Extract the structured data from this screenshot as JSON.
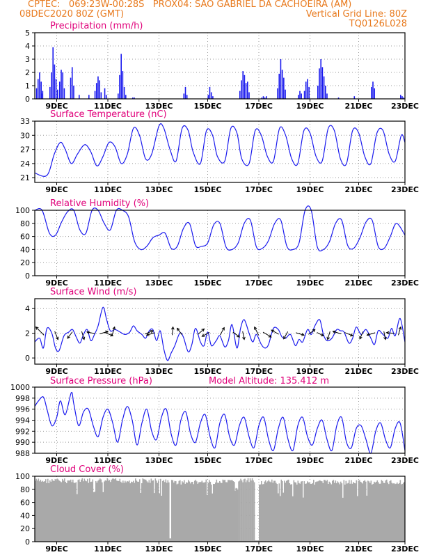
{
  "header": {
    "line1_left": "CPTEC:   069:23W-00:28S   PROX04: SAO GABRIEL DA CACHOEIRA (AM)",
    "line2_left": "08DEC2020 80Z (GMT)",
    "line2_right": "Vertical Grid Line: 80Z",
    "line3_right": "TQ0126L028"
  },
  "colors": {
    "header": "#e87a1e",
    "title": "#e0007a",
    "series": "#1a1aee",
    "cloud": "#a9a9a9"
  },
  "x_tick_labels": [
    "9DEC",
    "11DEC",
    "13DEC",
    "15DEC",
    "17DEC",
    "19DEC",
    "21DEC",
    "23DEC"
  ],
  "chart_data": [
    {
      "type": "bar",
      "title": "Precipitation (mm/h)",
      "ylim": [
        0,
        5
      ],
      "yticks": [
        0,
        1,
        2,
        3,
        4,
        5
      ],
      "x_range_days": [
        0,
        15.2
      ],
      "bursts": [
        {
          "day": 0.05,
          "values": [
            0.8,
            1.5,
            2.0,
            1.3,
            0.6
          ]
        },
        {
          "day": 0.25,
          "values": [
            0.4
          ]
        },
        {
          "day": 0.6,
          "values": [
            0.9,
            2.0,
            3.9,
            2.6,
            1.5,
            0.7
          ]
        },
        {
          "day": 1.0,
          "values": [
            1.3,
            2.2,
            2.0,
            0.8
          ]
        },
        {
          "day": 1.45,
          "values": [
            1.6,
            2.4,
            1.0
          ]
        },
        {
          "day": 1.8,
          "values": [
            0.3
          ]
        },
        {
          "day": 2.2,
          "values": [
            0.3
          ]
        },
        {
          "day": 2.45,
          "values": [
            0.6,
            1.2,
            1.7,
            1.4,
            0.5
          ]
        },
        {
          "day": 2.85,
          "values": [
            0.8,
            0.3
          ]
        },
        {
          "day": 3.4,
          "values": [
            0.4,
            1.8,
            3.4,
            2.1,
            0.9,
            0.3
          ]
        },
        {
          "day": 4.0,
          "values": [
            0.1,
            0.1
          ]
        },
        {
          "day": 6.1,
          "values": [
            0.4,
            0.9,
            0.3
          ]
        },
        {
          "day": 7.1,
          "values": [
            0.3,
            0.9,
            0.5,
            0.2
          ]
        },
        {
          "day": 8.4,
          "values": [
            0.6,
            1.4,
            2.1,
            1.8,
            1.2,
            1.3,
            0.5
          ]
        },
        {
          "day": 9.3,
          "values": [
            0.1,
            0.2,
            0.1,
            0.2
          ]
        },
        {
          "day": 9.95,
          "values": [
            0.8,
            1.9,
            3.0,
            2.2,
            1.6,
            0.7
          ]
        },
        {
          "day": 10.8,
          "values": [
            0.3,
            0.6,
            0.4
          ]
        },
        {
          "day": 11.05,
          "values": [
            0.6,
            1.3,
            1.5,
            0.9
          ]
        },
        {
          "day": 11.6,
          "values": [
            1.0,
            2.3,
            3.0,
            2.4,
            1.7,
            1.0,
            0.4
          ]
        },
        {
          "day": 12.45,
          "values": [
            0.1
          ]
        },
        {
          "day": 13.1,
          "values": [
            0.2
          ]
        },
        {
          "day": 13.8,
          "values": [
            0.9,
            1.3,
            0.8
          ]
        },
        {
          "day": 15.0,
          "values": [
            0.3,
            0.2,
            0.1
          ]
        }
      ]
    },
    {
      "type": "line",
      "title": "Surface Temperature (nC)",
      "ylim": [
        20,
        33
      ],
      "yticks": [
        21,
        24,
        27,
        30,
        33
      ],
      "x": [
        0.0,
        0.5,
        0.8,
        1.05,
        1.25,
        1.5,
        1.75,
        2.05,
        2.3,
        2.55,
        2.8,
        3.05,
        3.3,
        3.55,
        3.8,
        4.05,
        4.3,
        4.55,
        4.8,
        5.1,
        5.3,
        5.55,
        5.8,
        6.05,
        6.3,
        6.5,
        6.8,
        7.05,
        7.3,
        7.5,
        7.8,
        8.05,
        8.3,
        8.5,
        8.8,
        9.05,
        9.3,
        9.55,
        9.8,
        10.05,
        10.3,
        10.55,
        10.8,
        11.05,
        11.3,
        11.55,
        11.8,
        12.05,
        12.3,
        12.55,
        12.8,
        13.05,
        13.3,
        13.55,
        13.8,
        14.05,
        14.3,
        14.55,
        14.8,
        15.05,
        15.2
      ],
      "values": [
        22.0,
        21.5,
        26.0,
        28.5,
        27.0,
        24.0,
        26.0,
        28.0,
        26.5,
        23.5,
        25.5,
        28.5,
        27.5,
        24.0,
        26.0,
        31.5,
        30.0,
        25.0,
        26.0,
        32.0,
        31.5,
        27.0,
        24.5,
        31.5,
        31.0,
        26.5,
        24.0,
        31.0,
        30.0,
        25.5,
        24.5,
        31.5,
        30.5,
        25.0,
        24.0,
        31.0,
        30.0,
        25.5,
        24.5,
        31.5,
        30.0,
        25.0,
        24.0,
        31.0,
        30.5,
        25.5,
        24.5,
        31.5,
        31.0,
        25.0,
        24.0,
        31.0,
        30.5,
        25.5,
        24.0,
        30.5,
        31.0,
        26.0,
        24.5,
        30.0,
        28.5
      ]
    },
    {
      "type": "line",
      "title": "Relative Humidity (%)",
      "ylim": [
        0,
        100
      ],
      "yticks": [
        0,
        20,
        40,
        60,
        80,
        100
      ],
      "x": [
        0.0,
        0.3,
        0.6,
        0.85,
        1.1,
        1.35,
        1.6,
        1.85,
        2.1,
        2.35,
        2.6,
        2.85,
        3.1,
        3.35,
        3.6,
        3.85,
        4.1,
        4.35,
        4.6,
        4.85,
        5.1,
        5.35,
        5.6,
        5.85,
        6.1,
        6.35,
        6.6,
        6.85,
        7.1,
        7.35,
        7.6,
        7.85,
        8.1,
        8.35,
        8.6,
        8.85,
        9.1,
        9.35,
        9.6,
        9.85,
        10.1,
        10.35,
        10.6,
        10.85,
        11.1,
        11.35,
        11.6,
        11.85,
        12.1,
        12.35,
        12.6,
        12.85,
        13.1,
        13.35,
        13.6,
        13.85,
        14.1,
        14.35,
        14.6,
        14.85,
        15.2
      ],
      "values": [
        100,
        100,
        65,
        62,
        82,
        98,
        100,
        70,
        65,
        100,
        100,
        80,
        70,
        100,
        100,
        90,
        52,
        40,
        45,
        58,
        62,
        65,
        42,
        45,
        72,
        80,
        46,
        45,
        50,
        78,
        80,
        44,
        40,
        50,
        80,
        85,
        44,
        42,
        54,
        80,
        85,
        45,
        40,
        50,
        100,
        100,
        44,
        40,
        52,
        80,
        85,
        46,
        42,
        58,
        82,
        85,
        45,
        42,
        60,
        80,
        62
      ]
    },
    {
      "type": "line",
      "title": "Surface Wind (m/s)",
      "ylim": [
        -0.5,
        4.8
      ],
      "yticks": [
        0,
        2,
        4
      ],
      "x": [
        0.0,
        0.2,
        0.35,
        0.5,
        0.7,
        0.85,
        1.0,
        1.2,
        1.4,
        1.55,
        1.7,
        1.85,
        2.0,
        2.15,
        2.3,
        2.45,
        2.6,
        2.8,
        2.95,
        3.1,
        3.3,
        3.5,
        3.7,
        3.9,
        4.05,
        4.2,
        4.4,
        4.55,
        4.7,
        4.85,
        5.0,
        5.15,
        5.3,
        5.45,
        5.6,
        5.75,
        5.95,
        6.1,
        6.3,
        6.45,
        6.6,
        6.8,
        6.95,
        7.1,
        7.25,
        7.45,
        7.6,
        7.8,
        7.95,
        8.1,
        8.3,
        8.45,
        8.6,
        8.8,
        8.95,
        9.1,
        9.3,
        9.45,
        9.6,
        9.8,
        10.0,
        10.15,
        10.3,
        10.5,
        10.7,
        10.85,
        11.0,
        11.2,
        11.35,
        11.5,
        11.7,
        11.85,
        12.0,
        12.2,
        12.4,
        12.55,
        12.7,
        12.9,
        13.05,
        13.2,
        13.4,
        13.6,
        13.8,
        13.95,
        14.1,
        14.3,
        14.5,
        14.65,
        14.8,
        15.0,
        15.2
      ],
      "values": [
        1.3,
        1.6,
        0.8,
        2.4,
        2.0,
        0.8,
        0.6,
        1.8,
        2.1,
        2.3,
        1.7,
        1.2,
        1.9,
        2.3,
        1.4,
        1.9,
        2.6,
        4.1,
        3.1,
        2.2,
        2.3,
        2.1,
        1.9,
        2.1,
        2.6,
        2.2,
        1.9,
        1.6,
        2.2,
        2.3,
        1.4,
        2.2,
        0.7,
        -0.2,
        0.4,
        1.0,
        2.0,
        1.7,
        0.5,
        1.1,
        2.4,
        1.3,
        1.0,
        2.1,
        1.0,
        1.4,
        1.8,
        0.9,
        1.4,
        2.7,
        0.8,
        2.4,
        3.1,
        2.0,
        1.3,
        1.9,
        1.1,
        0.8,
        1.1,
        2.4,
        2.3,
        1.7,
        1.6,
        1.9,
        1.0,
        1.5,
        1.3,
        2.3,
        1.9,
        2.6,
        3.1,
        1.9,
        1.4,
        1.6,
        2.3,
        2.2,
        2.1,
        1.2,
        1.6,
        2.5,
        1.9,
        2.3,
        1.6,
        1.1,
        2.2,
        1.9,
        1.6,
        2.4,
        1.8,
        3.2,
        1.3
      ],
      "arrows": [
        {
          "day": 0.3,
          "u": -1.0,
          "v": 1.0
        },
        {
          "day": 0.85,
          "u": 0.4,
          "v": -1.0
        },
        {
          "day": 1.5,
          "u": -0.6,
          "v": -0.8
        },
        {
          "day": 1.95,
          "u": 0.3,
          "v": -1.0
        },
        {
          "day": 2.4,
          "u": -1.0,
          "v": 0.2
        },
        {
          "day": 2.75,
          "u": 1.0,
          "v": 0.3
        },
        {
          "day": 2.95,
          "u": 1.0,
          "v": -0.4
        },
        {
          "day": 3.2,
          "u": 0.3,
          "v": 1.0
        },
        {
          "day": 4.6,
          "u": 1.0,
          "v": 0.4
        },
        {
          "day": 4.85,
          "u": -1.0,
          "v": -0.3
        },
        {
          "day": 5.65,
          "u": 0.1,
          "v": 1.0
        },
        {
          "day": 6.0,
          "u": -0.6,
          "v": 0.8
        },
        {
          "day": 6.75,
          "u": 0.8,
          "v": 0.7
        },
        {
          "day": 7.1,
          "u": -0.9,
          "v": -0.5
        },
        {
          "day": 7.65,
          "u": 0.5,
          "v": 0.9
        },
        {
          "day": 8.2,
          "u": 0.8,
          "v": -0.6
        },
        {
          "day": 8.55,
          "u": 0.2,
          "v": -1.0
        },
        {
          "day": 9.15,
          "u": -0.5,
          "v": 1.0
        },
        {
          "day": 9.45,
          "u": 1.0,
          "v": -0.6
        },
        {
          "day": 9.95,
          "u": -0.9,
          "v": 0.5
        },
        {
          "day": 10.35,
          "u": -0.5,
          "v": -0.9
        },
        {
          "day": 10.8,
          "u": 1.0,
          "v": -0.3
        },
        {
          "day": 11.3,
          "u": 0.8,
          "v": 0.6
        },
        {
          "day": 11.65,
          "u": 0.8,
          "v": -0.4
        },
        {
          "day": 12.1,
          "u": -0.3,
          "v": -1.0
        },
        {
          "day": 12.5,
          "u": -1.0,
          "v": 0.3
        },
        {
          "day": 12.8,
          "u": 1.0,
          "v": -0.4
        },
        {
          "day": 13.45,
          "u": -0.4,
          "v": -0.9
        },
        {
          "day": 13.9,
          "u": -1.0,
          "v": -0.3
        },
        {
          "day": 14.35,
          "u": 0.2,
          "v": -1.0
        },
        {
          "day": 14.7,
          "u": -1.0,
          "v": 0.1
        },
        {
          "day": 14.95,
          "u": 0.3,
          "v": 1.0
        }
      ]
    },
    {
      "type": "line",
      "title": "Surface Pressure (hPa)",
      "annotation": "Model Altitude: 135.412 m",
      "ylim": [
        988,
        1000
      ],
      "yticks": [
        988,
        990,
        992,
        994,
        996,
        998,
        1000
      ],
      "x": [
        0.0,
        0.15,
        0.35,
        0.5,
        0.7,
        0.9,
        1.05,
        1.25,
        1.5,
        1.6,
        1.8,
        2.0,
        2.2,
        2.4,
        2.6,
        2.8,
        3.0,
        3.2,
        3.4,
        3.6,
        3.8,
        4.0,
        4.2,
        4.4,
        4.6,
        4.8,
        5.0,
        5.2,
        5.4,
        5.6,
        5.8,
        6.0,
        6.2,
        6.4,
        6.6,
        6.8,
        7.0,
        7.2,
        7.4,
        7.6,
        7.8,
        8.0,
        8.2,
        8.4,
        8.6,
        8.8,
        9.0,
        9.2,
        9.4,
        9.6,
        9.8,
        10.0,
        10.2,
        10.4,
        10.6,
        10.8,
        11.0,
        11.2,
        11.4,
        11.6,
        11.8,
        12.0,
        12.2,
        12.4,
        12.6,
        12.8,
        13.0,
        13.2,
        13.4,
        13.6,
        13.8,
        14.0,
        14.2,
        14.4,
        14.6,
        14.8,
        15.0,
        15.2
      ],
      "values": [
        996.5,
        997.5,
        998.2,
        996.0,
        993.0,
        994.5,
        997.5,
        995.0,
        999.0,
        997.0,
        993.0,
        995.5,
        996.0,
        993.0,
        991.0,
        994.5,
        996.0,
        993.5,
        990.0,
        994.0,
        996.5,
        994.0,
        989.5,
        993.5,
        996.0,
        992.0,
        990.5,
        994.5,
        996.0,
        991.5,
        989.5,
        994.0,
        995.5,
        991.5,
        990.0,
        993.5,
        995.0,
        991.0,
        989.0,
        993.5,
        995.0,
        991.0,
        989.5,
        993.0,
        994.5,
        991.0,
        989.0,
        993.0,
        994.5,
        990.5,
        988.5,
        992.5,
        994.5,
        990.5,
        988.5,
        993.0,
        994.5,
        991.0,
        989.5,
        992.5,
        994.0,
        990.5,
        988.5,
        993.0,
        994.5,
        990.0,
        989.0,
        992.5,
        993.0,
        990.5,
        988.0,
        992.0,
        993.5,
        990.5,
        989.0,
        992.5,
        993.5,
        988.5
      ]
    },
    {
      "type": "bar",
      "title": "Cloud Cover (%)",
      "ylim": [
        0,
        100
      ],
      "yticks": [
        0,
        20,
        40,
        60,
        80,
        100
      ],
      "segments": [
        {
          "start": 0.0,
          "end": 5.5,
          "level": 97
        },
        {
          "start": 5.5,
          "end": 5.6,
          "level": 5
        },
        {
          "start": 5.6,
          "end": 8.2,
          "level": 95
        },
        {
          "start": 8.2,
          "end": 8.35,
          "level": 85
        },
        {
          "start": 8.35,
          "end": 9.0,
          "level": 97
        },
        {
          "start": 9.0,
          "end": 9.2,
          "level": 2
        },
        {
          "start": 9.2,
          "end": 15.2,
          "level": 95
        }
      ]
    }
  ]
}
